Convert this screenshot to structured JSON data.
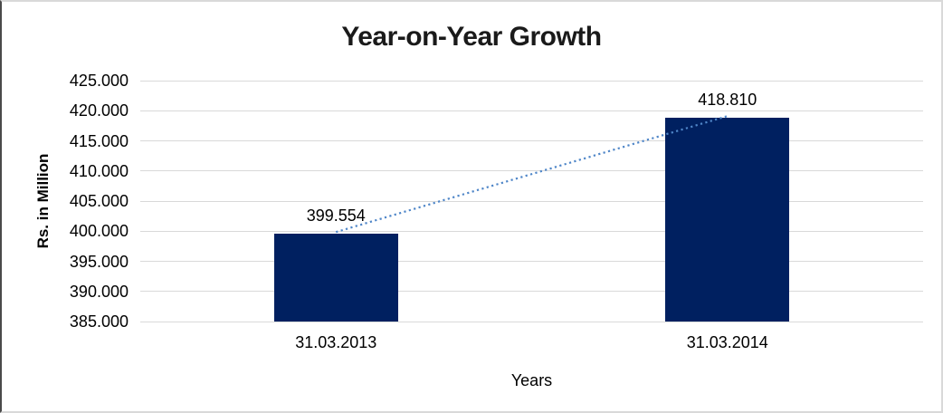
{
  "chart_data": {
    "type": "bar",
    "title": "Year-on-Year Growth",
    "xlabel": "Years",
    "ylabel": "Rs. in Million",
    "categories": [
      "31.03.2013",
      "31.03.2014"
    ],
    "values": [
      399.554,
      418.81
    ],
    "data_labels": [
      "399.554",
      "418.810"
    ],
    "ylim": [
      385,
      425
    ],
    "ytick_interval": 5,
    "ytick_labels": [
      "385.000",
      "390.000",
      "395.000",
      "400.000",
      "405.000",
      "410.000",
      "415.000",
      "420.000",
      "425.000"
    ],
    "grid": true,
    "legend": "none",
    "trendline": {
      "style": "dotted",
      "from_category": "31.03.2013",
      "to_category": "31.03.2014"
    },
    "colors": {
      "bar": "#002060",
      "gridline": "#d9d9d9",
      "trendline": "#4f86c8",
      "title_text": "#1a1a1a",
      "axis_text": "#000000",
      "frame_border": "#d9d9d9",
      "frame_left_border": "#4a4a4a",
      "background": "#ffffff"
    }
  }
}
